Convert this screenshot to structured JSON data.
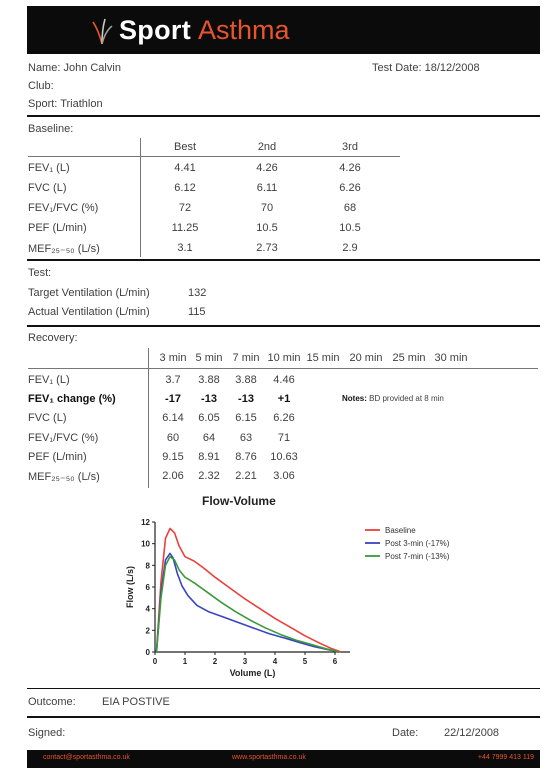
{
  "brand": {
    "word1": "Sport",
    "word2": "Asthma"
  },
  "patient": {
    "name_label": "Name: John Calvin",
    "test_date_label": "Test Date: 18/12/2008",
    "club_label": "Club:",
    "sport_label": "Sport: Triathlon"
  },
  "baseline": {
    "section_label": "Baseline:",
    "columns": [
      "Best",
      "2nd",
      "3rd"
    ],
    "rows": [
      {
        "label": "FEV₁ (L)",
        "values": [
          "4.41",
          "4.26",
          "4.26"
        ]
      },
      {
        "label": "FVC (L)",
        "values": [
          "6.12",
          "6.11",
          "6.26"
        ]
      },
      {
        "label": "FEV₁/FVC (%)",
        "values": [
          "72",
          "70",
          "68"
        ]
      },
      {
        "label": "PEF (L/min)",
        "values": [
          "11.25",
          "10.5",
          "10.5"
        ]
      },
      {
        "label": "MEF₂₅₋₅₀ (L/s)",
        "values": [
          "3.1",
          "2.73",
          "2.9"
        ]
      }
    ]
  },
  "test": {
    "section_label": "Test:",
    "target_label": "Target Ventilation (L/min)",
    "target_value": "132",
    "actual_label": "Actual Ventilation (L/min)",
    "actual_value": "115"
  },
  "recovery": {
    "section_label": "Recovery:",
    "columns": [
      "3 min",
      "5 min",
      "7 min",
      "10 min",
      "15 min",
      "20 min",
      "25 min",
      "30 min"
    ],
    "rows": [
      {
        "label": "FEV₁ (L)",
        "values": [
          "3.7",
          "3.88",
          "3.88",
          "4.46"
        ]
      },
      {
        "label": "FEV₁ change (%)",
        "values": [
          "-17",
          "-13",
          "-13",
          "+1"
        ]
      },
      {
        "label": "FVC (L)",
        "values": [
          "6.14",
          "6.05",
          "6.15",
          "6.26"
        ]
      },
      {
        "label": "FEV₁/FVC (%)",
        "values": [
          "60",
          "64",
          "63",
          "71"
        ]
      },
      {
        "label": "PEF (L/min)",
        "values": [
          "9.15",
          "8.91",
          "8.76",
          "10.63"
        ]
      },
      {
        "label": "MEF₂₅₋₅₀ (L/s)",
        "values": [
          "2.06",
          "2.32",
          "2.21",
          "3.06"
        ]
      }
    ],
    "notes_label": "Notes:",
    "notes_text": "BD provided at 8 min"
  },
  "chart_data": {
    "type": "line",
    "title": "Flow-Volume",
    "xlabel": "Volume (L)",
    "ylabel": "Flow (L/s)",
    "xlim": [
      0,
      6.5
    ],
    "ylim": [
      0,
      12
    ],
    "xticks": [
      "0",
      "1",
      "2",
      "3",
      "4",
      "5",
      "6"
    ],
    "yticks": [
      "0",
      "2",
      "4",
      "6",
      "8",
      "10",
      "12"
    ],
    "legend_position": "top-right",
    "series": [
      {
        "name": "Baseline",
        "color": "#e8413c",
        "x": [
          0.05,
          0.2,
          0.35,
          0.5,
          0.65,
          0.8,
          1.0,
          1.3,
          1.6,
          2.0,
          2.5,
          3.0,
          3.5,
          4.0,
          4.5,
          5.0,
          5.5,
          5.9,
          6.1,
          6.2
        ],
        "y": [
          0,
          6.5,
          10.5,
          11.4,
          11.0,
          9.8,
          8.8,
          8.4,
          7.8,
          6.9,
          5.9,
          4.9,
          4.0,
          3.1,
          2.3,
          1.5,
          0.8,
          0.3,
          0.1,
          0
        ]
      },
      {
        "name": "Post 3-min (-17%)",
        "color": "#3a43c0",
        "x": [
          0.05,
          0.2,
          0.35,
          0.5,
          0.6,
          0.75,
          0.9,
          1.1,
          1.4,
          1.8,
          2.3,
          2.8,
          3.3,
          3.8,
          4.3,
          4.8,
          5.3,
          5.8,
          6.0,
          6.1
        ],
        "y": [
          0,
          5.5,
          8.5,
          9.1,
          8.7,
          7.2,
          6.1,
          5.2,
          4.3,
          3.7,
          3.2,
          2.7,
          2.2,
          1.7,
          1.3,
          0.9,
          0.5,
          0.2,
          0.1,
          0
        ]
      },
      {
        "name": "Post 7-min (-13%)",
        "color": "#3a9a3a",
        "x": [
          0.05,
          0.2,
          0.35,
          0.5,
          0.65,
          0.8,
          1.0,
          1.3,
          1.7,
          2.2,
          2.7,
          3.2,
          3.7,
          4.2,
          4.7,
          5.2,
          5.7,
          6.0,
          6.1
        ],
        "y": [
          0,
          5.0,
          8.0,
          8.8,
          8.5,
          7.6,
          6.9,
          6.4,
          5.6,
          4.6,
          3.7,
          2.9,
          2.2,
          1.6,
          1.1,
          0.7,
          0.3,
          0.1,
          0
        ]
      }
    ]
  },
  "outcome": {
    "label": "Outcome:",
    "value": "EIA POSTIVE"
  },
  "signoff": {
    "signed_label": "Signed:",
    "date_label": "Date:",
    "date_value": "22/12/2008"
  },
  "footer": {
    "email": "contact@sportasthma.co.uk",
    "website": "www.sportasthma.co.uk",
    "phone": "+44 7999 413 119"
  }
}
